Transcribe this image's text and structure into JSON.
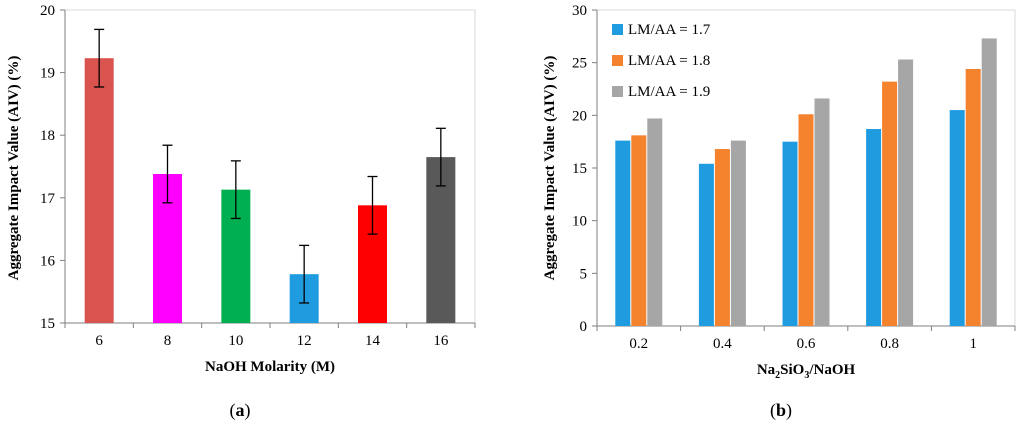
{
  "chart_data": [
    {
      "type": "bar",
      "panel_label": "a",
      "title": "",
      "xlabel": "NaOH Molarity (M)",
      "ylabel": "Aggregate Impact Value (AIV) (%)",
      "ylim": [
        15,
        20
      ],
      "yticks": [
        "15",
        "16",
        "17",
        "18",
        "19",
        "20"
      ],
      "categories": [
        "6",
        "8",
        "10",
        "12",
        "14",
        "16"
      ],
      "values": [
        19.23,
        17.38,
        17.13,
        15.78,
        16.88,
        17.65
      ],
      "errors": [
        0.46,
        0.46,
        0.46,
        0.46,
        0.46,
        0.46
      ],
      "colors": [
        "#d9534f",
        "#ff00ff",
        "#00b050",
        "#1f9ce0",
        "#ff0000",
        "#595959"
      ],
      "grid": false,
      "legend": "none"
    },
    {
      "type": "bar",
      "panel_label": "b",
      "title": "",
      "xlabel": "Na2SiO3/NaOH",
      "xlabel_parts": {
        "pre1": "Na",
        "sub1": "2",
        "pre2": "SiO",
        "sub2": "3",
        "post": "/NaOH"
      },
      "ylabel": "Aggregate Impact Value (AIV) (%)",
      "ylim": [
        0,
        30
      ],
      "yticks": [
        "0",
        "5",
        "10",
        "15",
        "20",
        "25",
        "30"
      ],
      "categories": [
        "0.2",
        "0.4",
        "0.6",
        "0.8",
        "1"
      ],
      "series": [
        {
          "name": "LM/AA = 1.7",
          "color": "#1f9ce0",
          "values": [
            17.6,
            15.4,
            17.5,
            18.7,
            20.5
          ]
        },
        {
          "name": "LM/AA = 1.8",
          "color": "#f5822d",
          "values": [
            18.1,
            16.8,
            20.1,
            23.2,
            24.4
          ]
        },
        {
          "name": "LM/AA = 1.9",
          "color": "#a6a6a6",
          "values": [
            19.7,
            17.6,
            21.6,
            25.3,
            27.3
          ]
        }
      ],
      "grid": false,
      "legend": "top-left"
    }
  ]
}
